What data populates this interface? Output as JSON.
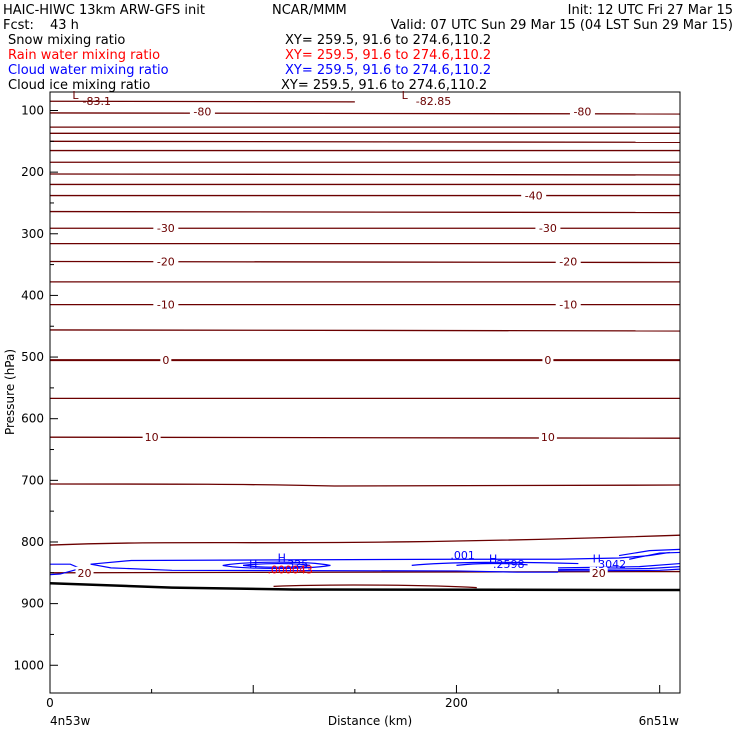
{
  "header": {
    "model": "HAIC-HIWC 13km ARW-GFS init",
    "org": "NCAR/MMM",
    "init": "Init: 12 UTC Fri 27 Mar 15",
    "fcst_label": "Fcst:",
    "fcst_value": "43 h",
    "valid": "Valid: 07 UTC Sun 29 Mar 15 (04 LST Sun 29 Mar 15)"
  },
  "fields": [
    {
      "name": "Snow mixing ratio",
      "xy": "XY= 259.5, 91.6 to 274.6,110.2",
      "color": "#000000"
    },
    {
      "name": "Rain water mixing ratio",
      "xy": "XY= 259.5, 91.6 to 274.6,110.2",
      "color": "#ff0000"
    },
    {
      "name": "Cloud water mixing ratio",
      "xy": "XY= 259.5, 91.6 to 274.6,110.2",
      "color": "#0000ff"
    },
    {
      "name": "Cloud ice mixing ratio",
      "xy": "XY= 259.5, 91.6 to 274.6,110.2",
      "color": "#000000"
    }
  ],
  "colors": {
    "temperature": "#6b0000",
    "cloud_water": "#0000ff",
    "rain_water": "#ff0000",
    "ground": "#000000"
  },
  "chart_data": {
    "type": "line",
    "ylabel": "Pressure (hPa)",
    "xlabel": "Distance (km)",
    "x_range": [
      0,
      310
    ],
    "y_range": [
      1045,
      70
    ],
    "y_ticks": [
      100,
      200,
      300,
      400,
      500,
      600,
      700,
      800,
      900,
      1000
    ],
    "y_tick_labels": [
      "100",
      "200",
      "300",
      "400",
      "500",
      "600",
      "700",
      "800",
      "900",
      "1000"
    ],
    "x_ticks": [
      0,
      200
    ],
    "x_tick_labels": [
      "0",
      "200"
    ],
    "x_endpoint_left": "4n53w",
    "x_endpoint_right": "6n51w",
    "temperature_isotherms": [
      {
        "level": -80,
        "label": "-80",
        "p": 104
      },
      {
        "level": -75,
        "p": 127
      },
      {
        "level": -70,
        "p": 137
      },
      {
        "level": -65,
        "p": 150
      },
      {
        "level": -60,
        "p": 165
      },
      {
        "level": -55,
        "p": 184
      },
      {
        "level": -50,
        "p": 203
      },
      {
        "level": -45,
        "p": 220
      },
      {
        "level": -40,
        "label": "-40",
        "p": 238
      },
      {
        "level": -35,
        "p": 264
      },
      {
        "level": -30,
        "label": "-30",
        "p": 291
      },
      {
        "level": -25,
        "p": 316
      },
      {
        "level": -20,
        "label": "-20",
        "p": 345
      },
      {
        "level": -15,
        "p": 378
      },
      {
        "level": -10,
        "label": "-10",
        "p": 415
      },
      {
        "level": -5,
        "p": 456
      },
      {
        "level": 0,
        "label": "0",
        "p": 505
      },
      {
        "level": 5,
        "p": 567
      },
      {
        "level": 10,
        "label": "10",
        "p": 630
      },
      {
        "level": 15,
        "p": 706
      },
      {
        "level": 20,
        "label": "20",
        "p": 850
      }
    ],
    "isotherm_labels": [
      {
        "text": "-80",
        "x": 75,
        "p": 102
      },
      {
        "text": "-80",
        "x": 262,
        "p": 102
      },
      {
        "text": "-40",
        "x": 238,
        "p": 238
      },
      {
        "text": "-30",
        "x": 57,
        "p": 291
      },
      {
        "text": "-30",
        "x": 245,
        "p": 291
      },
      {
        "text": "-20",
        "x": 57,
        "p": 345
      },
      {
        "text": "-20",
        "x": 255,
        "p": 345
      },
      {
        "text": "-10",
        "x": 57,
        "p": 415
      },
      {
        "text": "-10",
        "x": 255,
        "p": 415
      },
      {
        "text": "0",
        "x": 57,
        "p": 505
      },
      {
        "text": "0",
        "x": 245,
        "p": 505
      },
      {
        "text": "10",
        "x": 50,
        "p": 630
      },
      {
        "text": "10",
        "x": 245,
        "p": 630
      },
      {
        "text": "20",
        "x": 17,
        "p": 850
      },
      {
        "text": "20",
        "x": 270,
        "p": 850
      }
    ],
    "extrema_labels": [
      {
        "text": "L",
        "x": 11,
        "p": 81,
        "color": "#6b0000"
      },
      {
        "text": "-83.1",
        "x": 16,
        "p": 91,
        "color": "#6b0000"
      },
      {
        "text": "L",
        "x": 173,
        "p": 81,
        "color": "#6b0000"
      },
      {
        "text": "-82.85",
        "x": 180,
        "p": 91,
        "color": "#6b0000"
      },
      {
        "text": "H",
        "x": 112,
        "p": 832,
        "color": "#0000ff"
      },
      {
        "text": "H",
        "x": 98,
        "p": 843,
        "color": "#0000ff"
      },
      {
        "text": ".325",
        "x": 115,
        "p": 842,
        "color": "#0000ff"
      },
      {
        "text": ".000043",
        "x": 107,
        "p": 851,
        "color": "#ff0000"
      },
      {
        "text": ".001",
        "x": 197,
        "p": 828,
        "color": "#0000ff"
      },
      {
        "text": "H",
        "x": 216,
        "p": 833,
        "color": "#0000ff"
      },
      {
        "text": ".2598",
        "x": 218,
        "p": 842,
        "color": "#0000ff"
      },
      {
        "text": "H",
        "x": 267,
        "p": 833,
        "color": "#0000ff"
      },
      {
        "text": ".3042",
        "x": 268,
        "p": 842,
        "color": "#0000ff"
      }
    ]
  }
}
